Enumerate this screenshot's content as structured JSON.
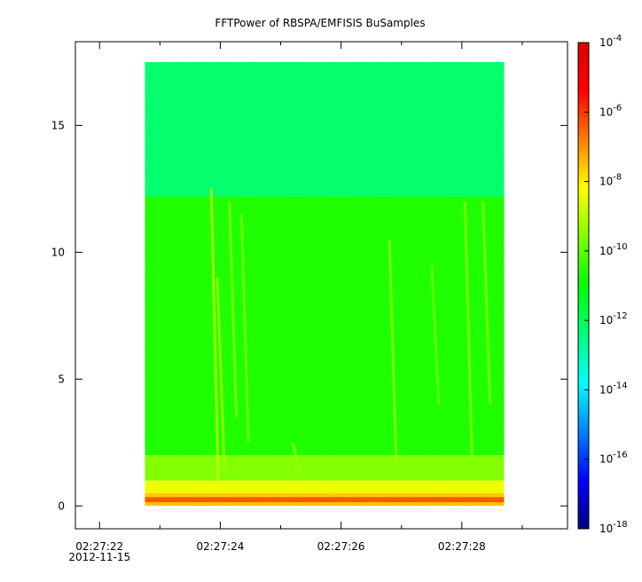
{
  "chart_data": {
    "type": "heatmap",
    "title": "FFTPower of RBSPA/EMFISIS  BuSamples",
    "xlabel": "",
    "ylabel": "",
    "x_ticks": [
      {
        "label": "02:27:22",
        "sublabel": "2012-11-15",
        "seconds": 22
      },
      {
        "label": "02:27:24",
        "seconds": 24
      },
      {
        "label": "02:27:26",
        "seconds": 26
      },
      {
        "label": "02:27:28",
        "seconds": 28
      }
    ],
    "x_minor_ticks_seconds": [
      23,
      25,
      27,
      29
    ],
    "xlim_seconds": [
      21.6,
      29.75
    ],
    "data_x_range_seconds": [
      22.75,
      28.7
    ],
    "y_ticks": [
      0,
      5,
      10,
      15
    ],
    "ylim": [
      -0.9,
      18.3
    ],
    "data_y_range": [
      0,
      17.5
    ],
    "colorbar": {
      "scale": "log",
      "range": [
        1e-18,
        0.0001
      ],
      "tick_labels": [
        {
          "base": "10",
          "exp": "-4",
          "value": 0.0001
        },
        {
          "base": "10",
          "exp": "-6",
          "value": 1e-06
        },
        {
          "base": "10",
          "exp": "-8",
          "value": 1e-08
        },
        {
          "base": "10",
          "exp": "-10",
          "value": 1e-10
        },
        {
          "base": "10",
          "exp": "-12",
          "value": 1e-12
        },
        {
          "base": "10",
          "exp": "-14",
          "value": 1e-14
        },
        {
          "base": "10",
          "exp": "-16",
          "value": 1e-16
        },
        {
          "base": "10",
          "exp": "-18",
          "value": 1e-18
        }
      ],
      "colors": [
        "#00007f",
        "#0000ff",
        "#0080ff",
        "#00ffff",
        "#00ff80",
        "#00ff00",
        "#80ff00",
        "#ffff00",
        "#ff8000",
        "#ff0000",
        "#e00000"
      ]
    },
    "spectrogram": {
      "bands": [
        {
          "y": [
            12.2,
            17.5
          ],
          "log10_power": -12.2
        },
        {
          "y": [
            2.0,
            12.2
          ],
          "log10_power": -10.7
        },
        {
          "y": [
            1.0,
            2.0
          ],
          "log10_power": -9.6
        },
        {
          "y": [
            0.5,
            1.0
          ],
          "log10_power": -8.4
        },
        {
          "y": [
            0.35,
            0.5
          ],
          "log10_power": -7.6
        },
        {
          "y": [
            0.15,
            0.35
          ],
          "log10_power": -6.3
        },
        {
          "y": [
            0.0,
            0.15
          ],
          "log10_power": -7.5
        }
      ],
      "features": [
        {
          "x_seconds": 23.85,
          "y_top": 12.5,
          "y_bottom": 1.0,
          "log10_power": -8.7
        },
        {
          "x_seconds": 23.95,
          "y_top": 9.0,
          "y_bottom": 1.5,
          "log10_power": -9.0
        },
        {
          "x_seconds": 24.15,
          "y_top": 12.0,
          "y_bottom": 3.5,
          "log10_power": -9.4
        },
        {
          "x_seconds": 24.35,
          "y_top": 11.5,
          "y_bottom": 2.5,
          "log10_power": -9.6
        },
        {
          "x_seconds": 25.2,
          "y_top": 2.5,
          "y_bottom": 1.3,
          "log10_power": -9.2
        },
        {
          "x_seconds": 26.8,
          "y_top": 10.5,
          "y_bottom": 1.5,
          "log10_power": -9.3
        },
        {
          "x_seconds": 27.5,
          "y_top": 9.5,
          "y_bottom": 4.0,
          "log10_power": -9.7
        },
        {
          "x_seconds": 28.05,
          "y_top": 12.0,
          "y_bottom": 2.0,
          "log10_power": -9.3
        },
        {
          "x_seconds": 28.35,
          "y_top": 12.0,
          "y_bottom": 4.0,
          "log10_power": -9.4
        }
      ]
    }
  }
}
